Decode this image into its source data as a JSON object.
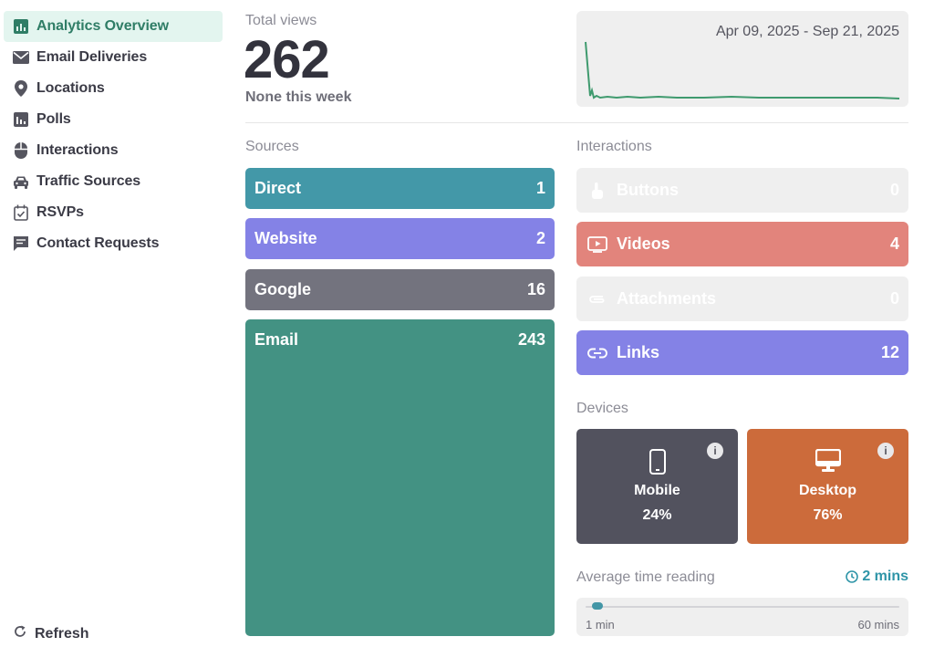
{
  "sidebar": {
    "items": [
      {
        "label": "Analytics Overview",
        "icon": "bar-chart-icon",
        "active": true
      },
      {
        "label": "Email Deliveries",
        "icon": "envelope-icon"
      },
      {
        "label": "Locations",
        "icon": "map-pin-icon"
      },
      {
        "label": "Polls",
        "icon": "poll-icon"
      },
      {
        "label": "Interactions",
        "icon": "mouse-icon"
      },
      {
        "label": "Traffic Sources",
        "icon": "car-icon"
      },
      {
        "label": "RSVPs",
        "icon": "calendar-check-icon"
      },
      {
        "label": "Contact Requests",
        "icon": "message-icon"
      }
    ],
    "refresh_label": "Refresh"
  },
  "summary": {
    "total_views_label": "Total views",
    "total_views": "262",
    "week_note": "None this week",
    "date_range": "Apr 09, 2025 - Sep 21, 2025"
  },
  "sources": {
    "title": "Sources",
    "items": [
      {
        "name": "Direct",
        "value": "1",
        "color": "#4398a8"
      },
      {
        "name": "Website",
        "value": "2",
        "color": "#8482e6"
      },
      {
        "name": "Google",
        "value": "16",
        "color": "#73737e"
      },
      {
        "name": "Email",
        "value": "243",
        "color": "#439283"
      }
    ]
  },
  "interactions": {
    "title": "Interactions",
    "items": [
      {
        "name": "Buttons",
        "value": "0",
        "icon": "pointer-hand-icon",
        "color": "#efefef"
      },
      {
        "name": "Videos",
        "value": "4",
        "icon": "video-icon",
        "color": "#e2847c"
      },
      {
        "name": "Attachments",
        "value": "0",
        "icon": "paperclip-icon",
        "color": "#efefef"
      },
      {
        "name": "Links",
        "value": "12",
        "icon": "link-icon",
        "color": "#8482e6"
      }
    ]
  },
  "devices": {
    "title": "Devices",
    "items": [
      {
        "name": "Mobile",
        "percent": "24%",
        "icon": "mobile-icon",
        "color": "#52525e"
      },
      {
        "name": "Desktop",
        "percent": "76%",
        "icon": "desktop-icon",
        "color": "#cc6b3b"
      }
    ]
  },
  "reading": {
    "label": "Average time reading",
    "value": "2 mins",
    "min_label": "1 min",
    "max_label": "60 mins",
    "level": 0.02
  },
  "colors": {
    "accent": "#2f95a8",
    "active_nav_bg": "#e3f5ef",
    "spark_line": "#3f9a6e"
  }
}
